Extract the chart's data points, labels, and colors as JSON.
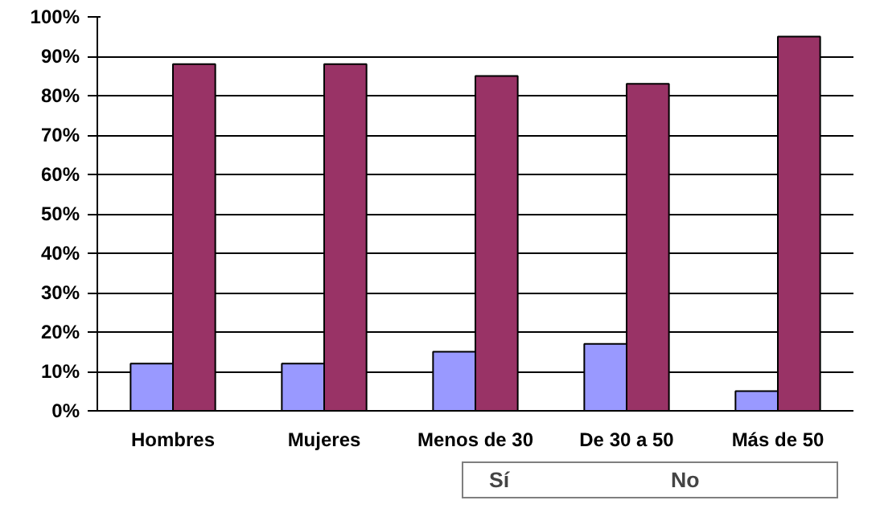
{
  "chart_data": {
    "type": "bar",
    "categories": [
      "Hombres",
      "Mujeres",
      "Menos de 30",
      "De 30 a 50",
      "Más de 50"
    ],
    "series": [
      {
        "name": "Sí",
        "color": "#9999ff",
        "values": [
          12,
          12,
          15,
          17,
          5
        ]
      },
      {
        "name": "No",
        "color": "#993366",
        "values": [
          88,
          88,
          85,
          83,
          95
        ]
      }
    ],
    "ylim": [
      0,
      100
    ],
    "yticks": [
      {
        "value": 0,
        "label": "0%"
      },
      {
        "value": 10,
        "label": "10%"
      },
      {
        "value": 20,
        "label": "20%"
      },
      {
        "value": 30,
        "label": "30%"
      },
      {
        "value": 40,
        "label": "40%"
      },
      {
        "value": 50,
        "label": "50%"
      },
      {
        "value": 60,
        "label": "60%"
      },
      {
        "value": 70,
        "label": "70%"
      },
      {
        "value": 80,
        "label": "80%"
      },
      {
        "value": 90,
        "label": "90%"
      },
      {
        "value": 100,
        "label": "100%"
      }
    ],
    "grid": "y",
    "legend": "bottom right"
  }
}
